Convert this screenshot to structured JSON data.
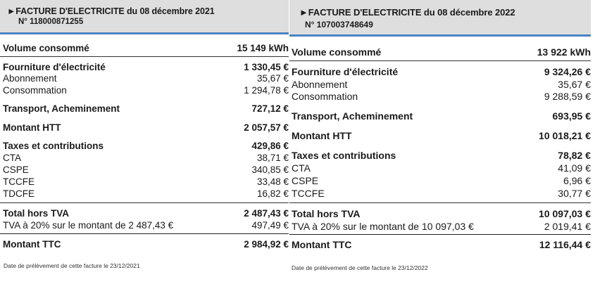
{
  "invoices": [
    {
      "title": "FACTURE D'ELECTRICITE du 08 décembre 2021",
      "number": "N° 118000871255",
      "rows": [
        {
          "label": "Volume consommé",
          "value": "15 149 kWh",
          "bold": true
        },
        {
          "label": "Fourniture d'électricité",
          "value": "1 330,45 €",
          "bold": true
        },
        {
          "label": "Abonnement",
          "value": "35,67 €",
          "bold": false
        },
        {
          "label": "Consommation",
          "value": "1 294,78 €",
          "bold": false
        },
        {
          "label": "Transport, Acheminement",
          "value": "727,12 €",
          "bold": true
        },
        {
          "label": "Montant HTT",
          "value": "2 057,57 €",
          "bold": true
        },
        {
          "label": "Taxes et contributions",
          "value": "429,86 €",
          "bold": true
        },
        {
          "label": "CTA",
          "value": "38,71 €",
          "bold": false
        },
        {
          "label": "CSPE",
          "value": "340,85 €",
          "bold": false
        },
        {
          "label": "TCCFE",
          "value": "33,48 €",
          "bold": false
        },
        {
          "label": "TDCFE",
          "value": "16,82 €",
          "bold": false
        },
        {
          "label": "Total hors TVA",
          "value": "2 487,43 €",
          "bold": true
        },
        {
          "label": "TVA à 20% sur le montant de 2 487,43 €",
          "value": "497,49 €",
          "bold": false
        },
        {
          "label": "Montant TTC",
          "value": "2 984,92 €",
          "bold": true
        }
      ],
      "footnote": "Date de prélèvement de cette facture le 23/12/2021"
    },
    {
      "title": "FACTURE D'ELECTRICITE du 08 décembre 2022",
      "number": "N° 107003748649",
      "rows": [
        {
          "label": "Volume consommé",
          "value": "13 922 kWh",
          "bold": true
        },
        {
          "label": "Fourniture d'électricité",
          "value": "9 324,26 €",
          "bold": true
        },
        {
          "label": "Abonnement",
          "value": "35,67 €",
          "bold": false
        },
        {
          "label": "Consommation",
          "value": "9 288,59 €",
          "bold": false
        },
        {
          "label": "Transport, Acheminement",
          "value": "693,95 €",
          "bold": true
        },
        {
          "label": "Montant HTT",
          "value": "10 018,21 €",
          "bold": true
        },
        {
          "label": "Taxes et contributions",
          "value": "78,82 €",
          "bold": true
        },
        {
          "label": "CTA",
          "value": "41,09 €",
          "bold": false
        },
        {
          "label": "CSPE",
          "value": "6,96 €",
          "bold": false
        },
        {
          "label": "TCCFE",
          "value": "30,77 €",
          "bold": false
        },
        {
          "label": "Total hors TVA",
          "value": "10 097,03 €",
          "bold": true
        },
        {
          "label": "TVA à 20% sur le montant de 10 097,03 €",
          "value": "2 019,41 €",
          "bold": false
        },
        {
          "label": "Montant TTC",
          "value": "12 116,44 €",
          "bold": true
        }
      ],
      "footnote": "Date de prélèvement de cette facture le 23/12/2022"
    }
  ]
}
